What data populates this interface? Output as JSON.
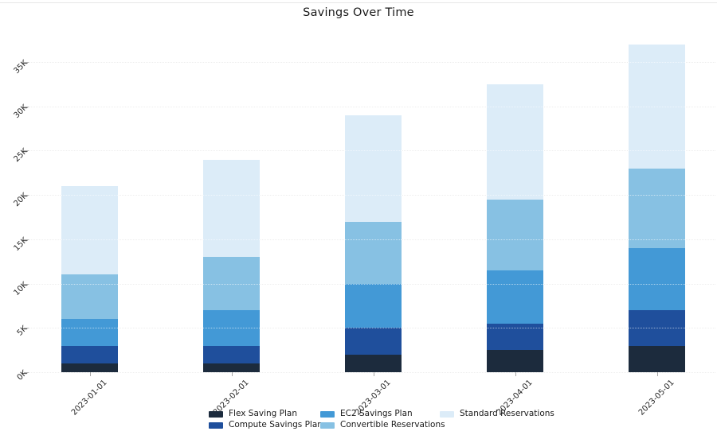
{
  "title": "Savings Over Time",
  "chart_data": {
    "type": "bar",
    "stacked": true,
    "title": "Savings Over Time",
    "xlabel": "",
    "ylabel": "",
    "categories": [
      "2023-01-01",
      "2023-02-01",
      "2023-03-01",
      "2023-04-01",
      "2023-05-01"
    ],
    "series": [
      {
        "name": "Flex Saving Plan",
        "color": "#1c2b3d",
        "values": [
          1000,
          1000,
          2000,
          2500,
          3000
        ]
      },
      {
        "name": "Compute Savings Plan",
        "color": "#1f4f9c",
        "values": [
          2000,
          2000,
          3000,
          3000,
          4000
        ]
      },
      {
        "name": "EC2 Savings Plan",
        "color": "#4399d6",
        "values": [
          3000,
          4000,
          5000,
          6000,
          7000
        ]
      },
      {
        "name": "Convertible Reservations",
        "color": "#87c1e3",
        "values": [
          5000,
          6000,
          7000,
          8000,
          9000
        ]
      },
      {
        "name": "Standard Reservations",
        "color": "#dcecf8",
        "values": [
          10000,
          11000,
          12000,
          13000,
          14000
        ]
      }
    ],
    "ylim": [
      0,
      37500
    ],
    "ytick_values": [
      0,
      5000,
      10000,
      15000,
      20000,
      25000,
      30000,
      35000
    ],
    "ytick_labels": [
      "0K",
      "5K",
      "10K",
      "15K",
      "20K",
      "25K",
      "30K",
      "35K"
    ],
    "grid": "horizontal-dotted",
    "legend_position": "bottom",
    "legend_columns": [
      [
        "Flex Saving Plan",
        "Compute Savings Plan"
      ],
      [
        "EC2 Savings Plan",
        "Convertible Reservations"
      ],
      [
        "Standard Reservations"
      ]
    ]
  }
}
